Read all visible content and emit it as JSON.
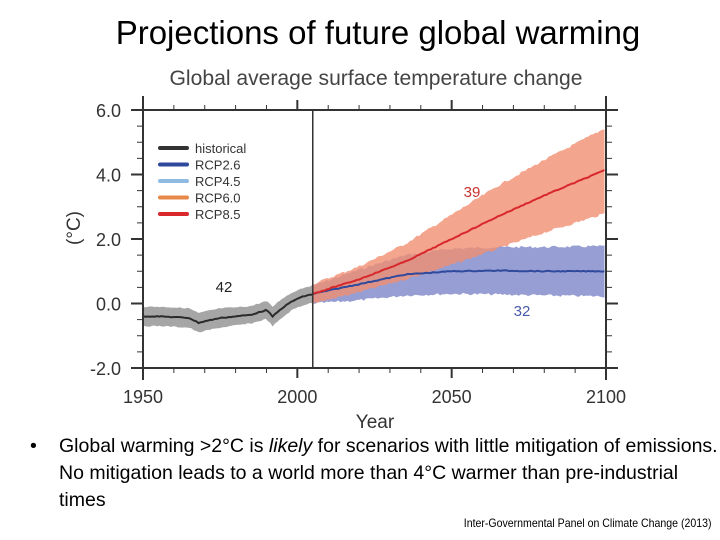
{
  "slide": {
    "title": "Projections of future global warming",
    "bullet_marker": "•",
    "bullet_parts": {
      "pre": "Global warming >2°C is ",
      "emph": "likely",
      "post": " for scenarios with little mitigation of emissions. No mitigation leads to a world more than 4°C warmer than pre-industrial times"
    },
    "source": "Inter-Governmental Panel on Climate Change (2013)"
  },
  "chart_data": {
    "type": "line",
    "title": "Global average surface temperature change",
    "xlabel": "Year",
    "ylabel": "(°C)",
    "xlim": [
      1950,
      2100
    ],
    "ylim": [
      -2.0,
      6.0
    ],
    "xticks": [
      1950,
      2000,
      2050,
      2100
    ],
    "xtick_labels": [
      "1950",
      "2000",
      "2050",
      "2100"
    ],
    "yticks": [
      -2.0,
      0.0,
      2.0,
      4.0,
      6.0
    ],
    "ytick_labels": [
      "-2.0",
      "0.0",
      "2.0",
      "4.0",
      "6.0"
    ],
    "x_minor_step": 10,
    "y_minor_step": 0.5,
    "grid": false,
    "divider_year": 2005,
    "legend": {
      "placement": "top-left",
      "entries": [
        {
          "label": "historical",
          "color": "#333333"
        },
        {
          "label": "RCP2.6",
          "color": "#2f4a9c"
        },
        {
          "label": "RCP4.5",
          "color": "#8fbbe3"
        },
        {
          "label": "RCP6.0",
          "color": "#e8894a"
        },
        {
          "label": "RCP8.5",
          "color": "#d8282c"
        }
      ]
    },
    "series": [
      {
        "name": "historical",
        "color": "#2b2b2b",
        "band_color": "#a6a6a6",
        "model_count_label": "42",
        "label_color": "#222222",
        "x": [
          1950,
          1955,
          1960,
          1965,
          1968,
          1970,
          1975,
          1980,
          1985,
          1990,
          1992,
          1995,
          1998,
          2000,
          2003,
          2005
        ],
        "mean": [
          -0.4,
          -0.4,
          -0.42,
          -0.45,
          -0.6,
          -0.55,
          -0.45,
          -0.4,
          -0.35,
          -0.2,
          -0.4,
          -0.15,
          0.05,
          0.15,
          0.25,
          0.28
        ],
        "lower": [
          -0.7,
          -0.7,
          -0.72,
          -0.75,
          -0.9,
          -0.85,
          -0.75,
          -0.68,
          -0.62,
          -0.48,
          -0.7,
          -0.45,
          -0.22,
          -0.12,
          -0.02,
          0.02
        ],
        "upper": [
          -0.1,
          -0.1,
          -0.12,
          -0.15,
          -0.3,
          -0.25,
          -0.15,
          -0.12,
          -0.08,
          0.08,
          -0.1,
          0.15,
          0.32,
          0.42,
          0.52,
          0.55
        ]
      },
      {
        "name": "RCP2.6",
        "color": "#2f4a9c",
        "band_color": "#7d86c9",
        "model_count_label": "32",
        "label_color": "#4a5aa8",
        "x": [
          2005,
          2020,
          2035,
          2050,
          2065,
          2080,
          2100
        ],
        "mean": [
          0.3,
          0.6,
          0.9,
          1.0,
          1.02,
          1.0,
          1.0
        ],
        "lower": [
          0.0,
          0.1,
          0.25,
          0.3,
          0.28,
          0.25,
          0.22
        ],
        "upper": [
          0.55,
          1.05,
          1.5,
          1.7,
          1.75,
          1.75,
          1.78
        ]
      },
      {
        "name": "RCP8.5",
        "color": "#d8282c",
        "band_color": "#f08e72",
        "model_count_label": "39",
        "label_color": "#c8302e",
        "x": [
          2005,
          2020,
          2035,
          2050,
          2065,
          2080,
          2100
        ],
        "mean": [
          0.3,
          0.75,
          1.3,
          2.0,
          2.7,
          3.35,
          4.15
        ],
        "lower": [
          0.0,
          0.35,
          0.75,
          1.2,
          1.7,
          2.2,
          2.8
        ],
        "upper": [
          0.6,
          1.15,
          1.85,
          2.75,
          3.65,
          4.45,
          5.45
        ]
      }
    ]
  }
}
